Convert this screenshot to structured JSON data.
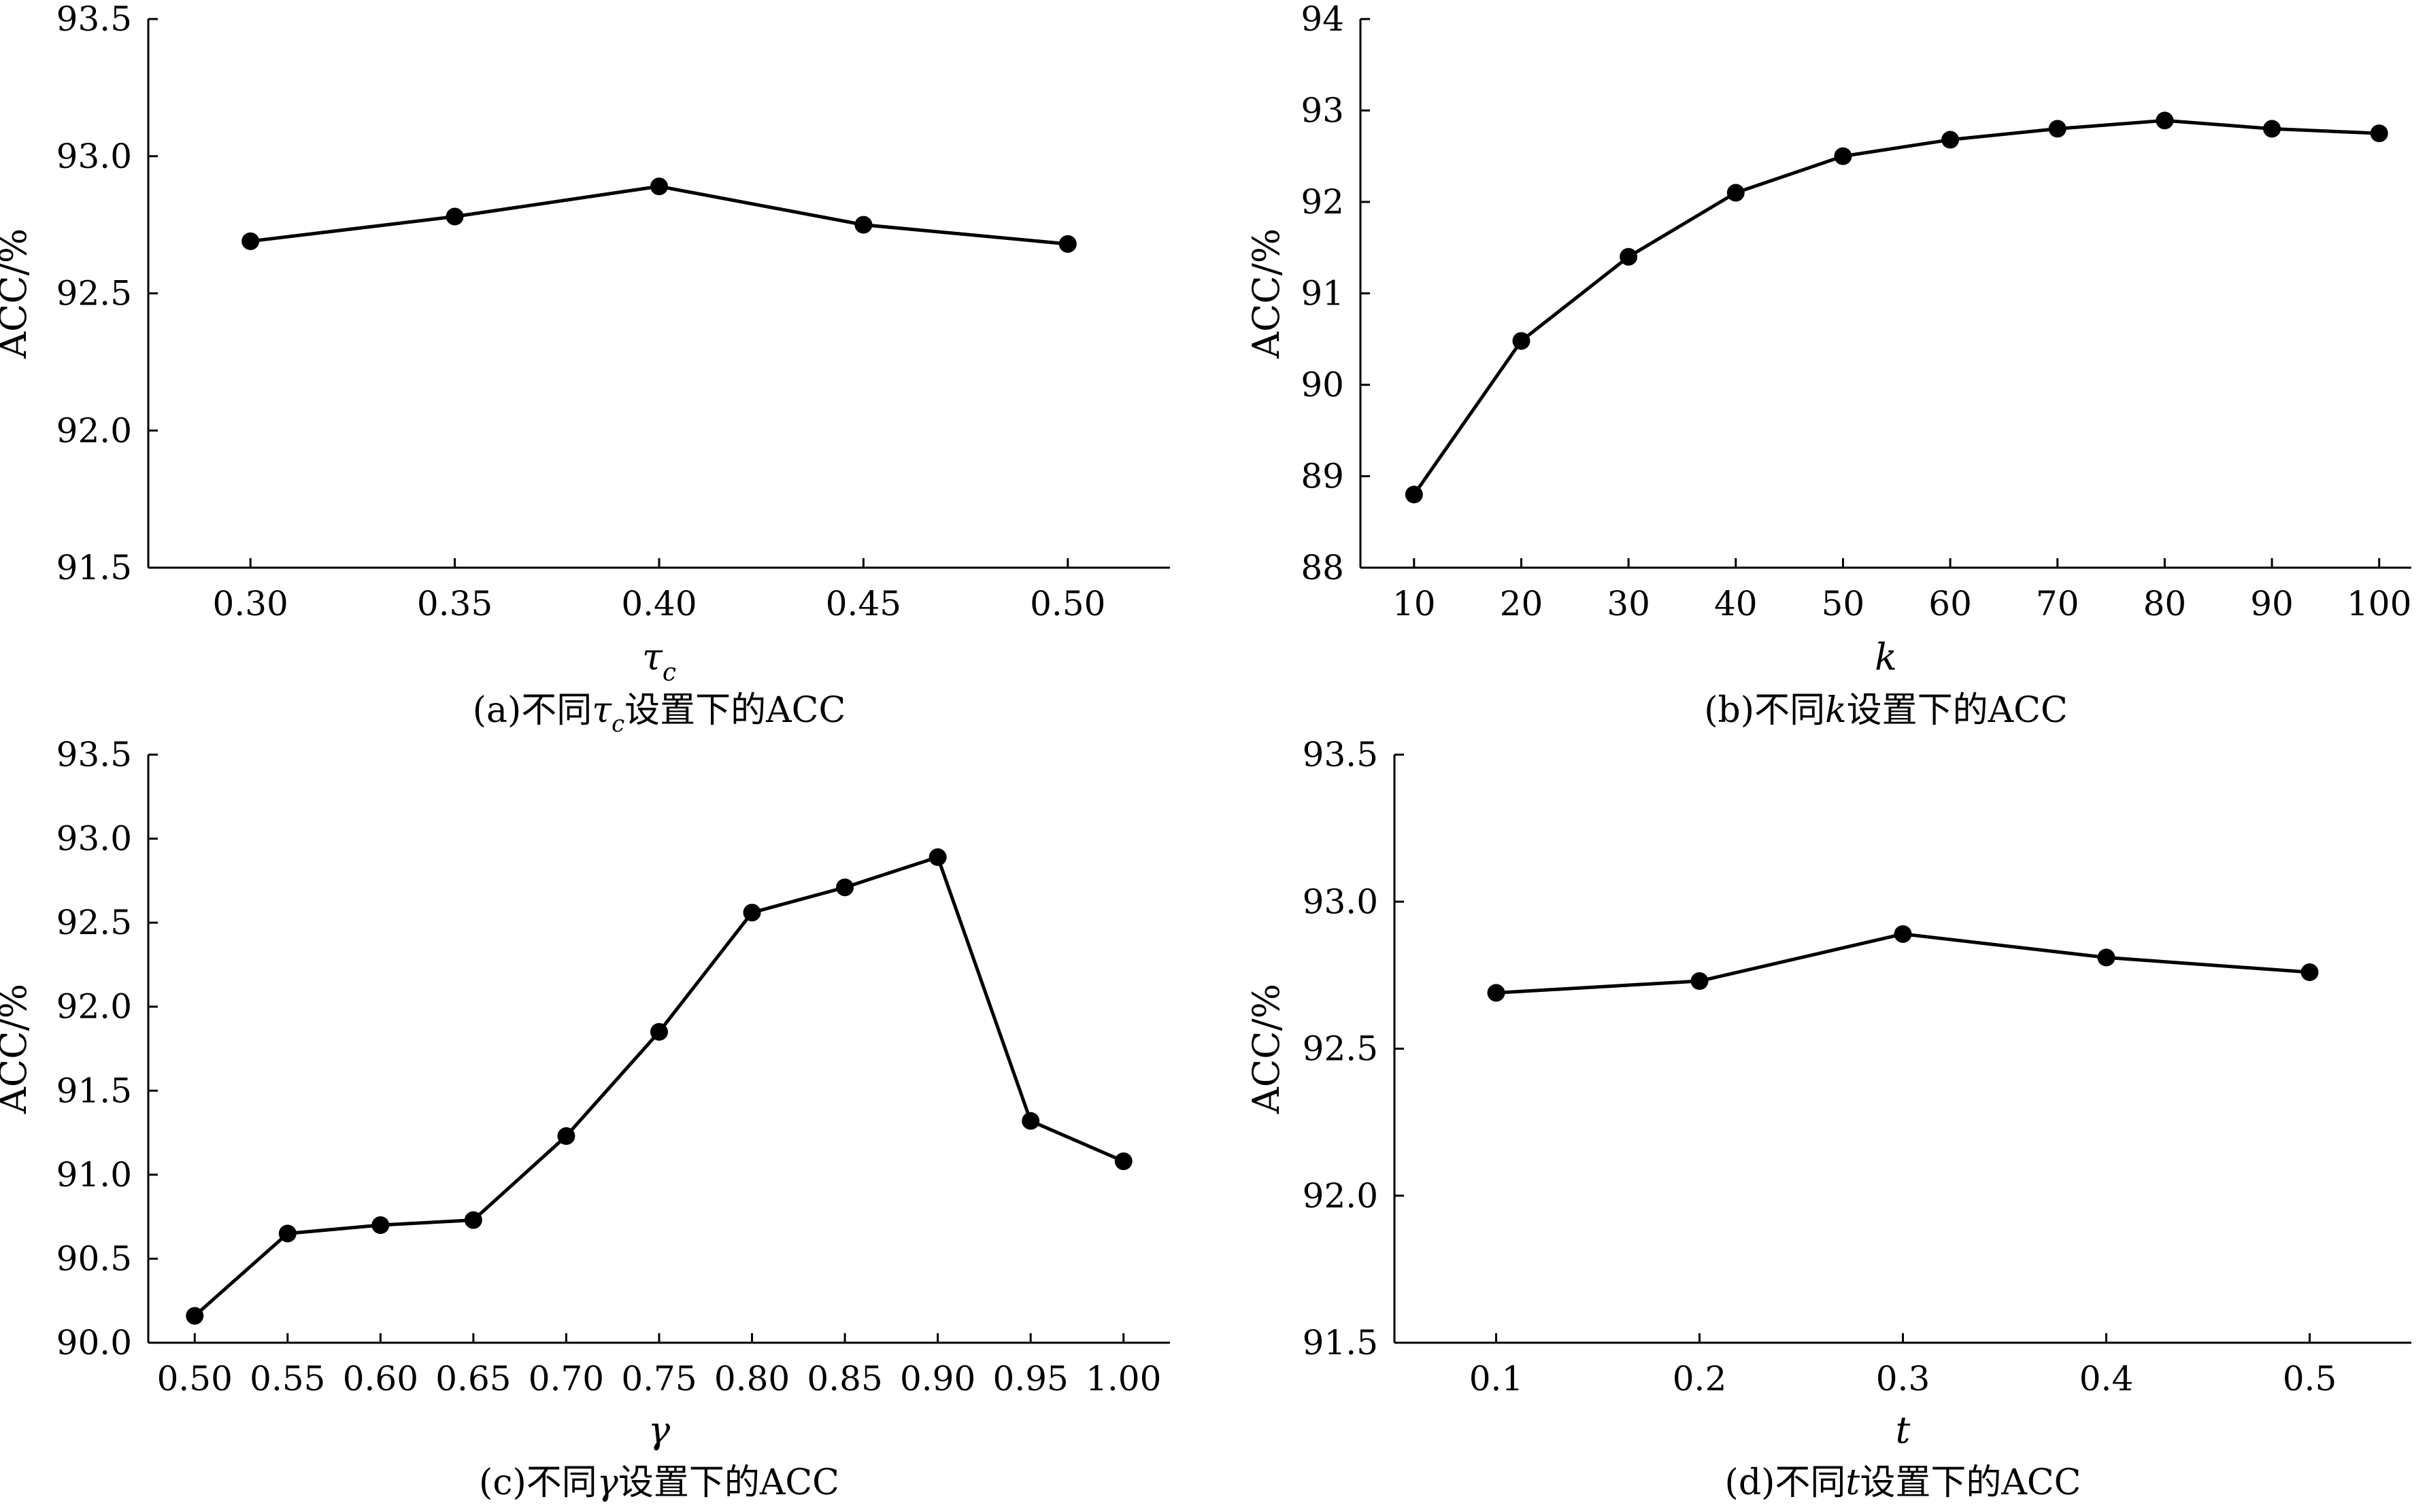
{
  "chart_data": [
    {
      "type": "line",
      "caption": {
        "prefix": "(a)不同",
        "symbol": "τ",
        "symbol_sub": "c",
        "suffix": "设置下的ACC"
      },
      "xlabel": "τ",
      "xlabel_sub": "c",
      "ylabel": "ACC/%",
      "x": [
        0.3,
        0.35,
        0.4,
        0.45,
        0.5
      ],
      "xtick_labels": [
        "0.30",
        "0.35",
        "0.40",
        "0.45",
        "0.50"
      ],
      "values": [
        92.69,
        92.78,
        92.89,
        92.75,
        92.68
      ],
      "xlim": [
        0.275,
        0.525
      ],
      "ylim": [
        91.5,
        93.5
      ],
      "yticks": [
        91.5,
        92.0,
        92.5,
        93.0,
        93.5
      ],
      "ytick_labels": [
        "91.5",
        "92.0",
        "92.5",
        "93.0",
        "93.5"
      ],
      "grid": false,
      "line_color": "#000000"
    },
    {
      "type": "line",
      "caption": {
        "prefix": "(b)不同",
        "symbol": "k",
        "symbol_sub": "",
        "suffix": "设置下的ACC"
      },
      "xlabel": "k",
      "xlabel_sub": "",
      "ylabel": "ACC/%",
      "x": [
        10,
        20,
        30,
        40,
        50,
        60,
        70,
        80,
        90,
        100
      ],
      "xtick_labels": [
        "10",
        "20",
        "30",
        "40",
        "50",
        "60",
        "70",
        "80",
        "90",
        "100"
      ],
      "values": [
        88.8,
        90.48,
        91.4,
        92.1,
        92.5,
        92.68,
        92.8,
        92.89,
        92.8,
        92.75
      ],
      "xlim": [
        5,
        103
      ],
      "ylim": [
        88,
        94
      ],
      "yticks": [
        88,
        89,
        90,
        91,
        92,
        93,
        94
      ],
      "ytick_labels": [
        "88",
        "89",
        "90",
        "91",
        "92",
        "93",
        "94"
      ],
      "grid": false,
      "line_color": "#000000"
    },
    {
      "type": "line",
      "caption": {
        "prefix": "(c)不同",
        "symbol": "γ",
        "symbol_sub": "",
        "suffix": "设置下的ACC"
      },
      "xlabel": "γ",
      "xlabel_sub": "",
      "ylabel": "ACC/%",
      "x": [
        0.5,
        0.55,
        0.6,
        0.65,
        0.7,
        0.75,
        0.8,
        0.85,
        0.9,
        0.95,
        1.0
      ],
      "xtick_labels": [
        "0.50",
        "0.55",
        "0.60",
        "0.65",
        "0.70",
        "0.75",
        "0.80",
        "0.85",
        "0.90",
        "0.95",
        "1.00"
      ],
      "values": [
        90.16,
        90.65,
        90.7,
        90.73,
        91.23,
        91.85,
        92.56,
        92.71,
        92.89,
        91.32,
        91.08
      ],
      "xlim": [
        0.475,
        1.025
      ],
      "ylim": [
        90.0,
        93.5
      ],
      "yticks": [
        90.0,
        90.5,
        91.0,
        91.5,
        92.0,
        92.5,
        93.0,
        93.5
      ],
      "ytick_labels": [
        "90.0",
        "90.5",
        "91.0",
        "91.5",
        "92.0",
        "92.5",
        "93.0",
        "93.5"
      ],
      "grid": false,
      "line_color": "#000000"
    },
    {
      "type": "line",
      "caption": {
        "prefix": "(d)不同",
        "symbol": "t",
        "symbol_sub": "",
        "suffix": "设置下的ACC"
      },
      "xlabel": "t",
      "xlabel_sub": "",
      "ylabel": "ACC/%",
      "x": [
        0.1,
        0.2,
        0.3,
        0.4,
        0.5
      ],
      "xtick_labels": [
        "0.1",
        "0.2",
        "0.3",
        "0.4",
        "0.5"
      ],
      "values": [
        92.69,
        92.73,
        92.89,
        92.81,
        92.76
      ],
      "xlim": [
        0.05,
        0.55
      ],
      "ylim": [
        91.5,
        93.5
      ],
      "yticks": [
        91.5,
        92.0,
        92.5,
        93.0,
        93.5
      ],
      "ytick_labels": [
        "91.5",
        "92.0",
        "92.5",
        "93.0",
        "93.5"
      ],
      "grid": false,
      "line_color": "#000000"
    }
  ]
}
